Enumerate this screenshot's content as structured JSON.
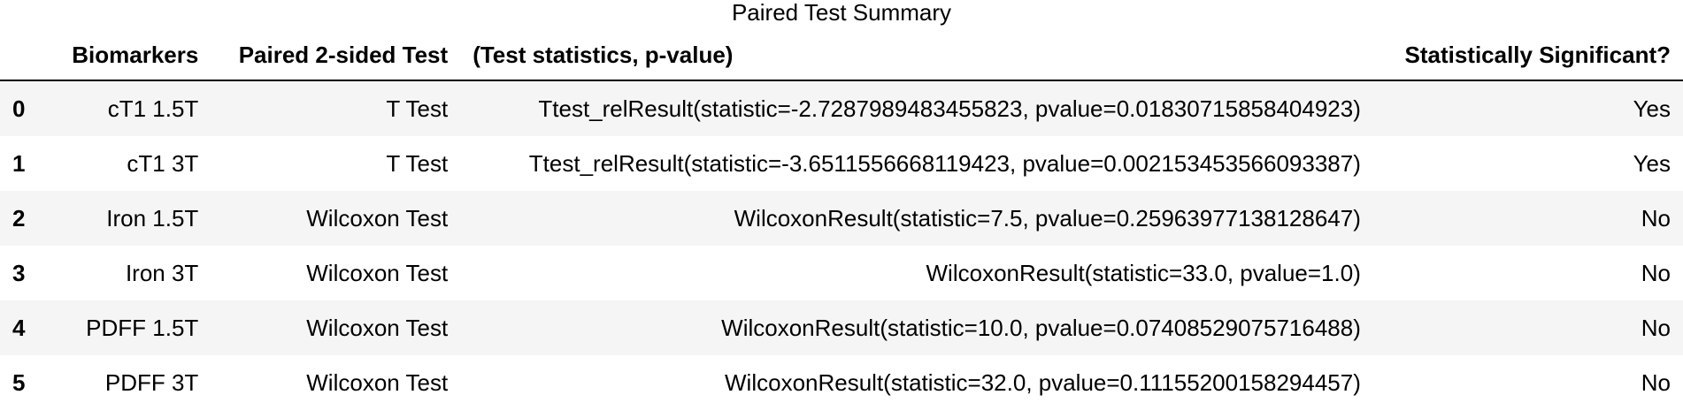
{
  "caption": "Paired Test Summary",
  "columns": {
    "index": "",
    "biomarkers": "Biomarkers",
    "test": "Paired 2-sided Test",
    "stats": "(Test statistics, p-value)",
    "significant": "Statistically Significant?"
  },
  "rows": [
    {
      "index": "0",
      "biomarker": "cT1 1.5T",
      "test": "T Test",
      "stats": "Ttest_relResult(statistic=-2.7287989483455823, pvalue=0.01830715858404923)",
      "significant": "Yes"
    },
    {
      "index": "1",
      "biomarker": "cT1 3T",
      "test": "T Test",
      "stats": "Ttest_relResult(statistic=-3.6511556668119423, pvalue=0.002153453566093387)",
      "significant": "Yes"
    },
    {
      "index": "2",
      "biomarker": "Iron 1.5T",
      "test": "Wilcoxon Test",
      "stats": "WilcoxonResult(statistic=7.5, pvalue=0.25963977138128647)",
      "significant": "No"
    },
    {
      "index": "3",
      "biomarker": "Iron 3T",
      "test": "Wilcoxon Test",
      "stats": "WilcoxonResult(statistic=33.0, pvalue=1.0)",
      "significant": "No"
    },
    {
      "index": "4",
      "biomarker": "PDFF 1.5T",
      "test": "Wilcoxon Test",
      "stats": "WilcoxonResult(statistic=10.0, pvalue=0.07408529075716488)",
      "significant": "No"
    },
    {
      "index": "5",
      "biomarker": "PDFF 3T",
      "test": "Wilcoxon Test",
      "stats": "WilcoxonResult(statistic=32.0, pvalue=0.11155200158294457)",
      "significant": "No"
    }
  ]
}
